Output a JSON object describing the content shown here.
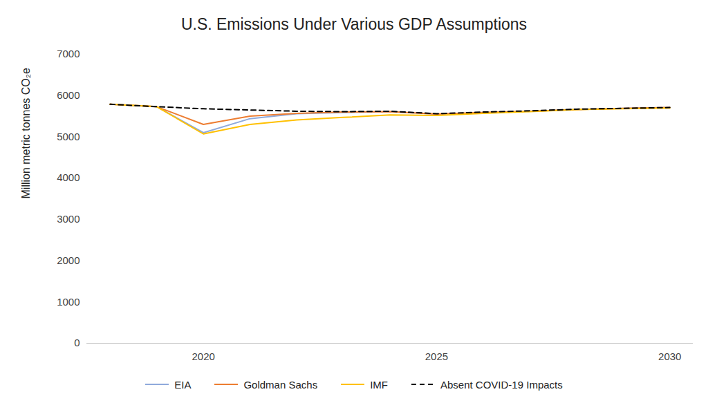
{
  "chart_data": {
    "type": "line",
    "title": "U.S. Emissions Under Various GDP Assumptions",
    "y_label": "Million metric tonnes CO₂e",
    "x": [
      2018,
      2019,
      2020,
      2021,
      2022,
      2023,
      2024,
      2025,
      2026,
      2027,
      2028,
      2029,
      2030
    ],
    "series": [
      {
        "name": "EIA",
        "color": "#8faadc",
        "line_style": "solid",
        "values": [
          5790,
          5730,
          5100,
          5440,
          5560,
          5590,
          5610,
          5550,
          5590,
          5620,
          5660,
          5690,
          5710
        ]
      },
      {
        "name": "Goldman Sachs",
        "color": "#ed7d31",
        "line_style": "solid",
        "values": [
          5790,
          5730,
          5300,
          5500,
          5570,
          5600,
          5610,
          5550,
          5590,
          5620,
          5660,
          5690,
          5710
        ]
      },
      {
        "name": "IMF",
        "color": "#ffc000",
        "line_style": "solid",
        "values": [
          5790,
          5730,
          5070,
          5300,
          5410,
          5470,
          5530,
          5520,
          5570,
          5610,
          5660,
          5680,
          5700
        ]
      },
      {
        "name": "Absent COVID-19 Impacts",
        "color": "#000000",
        "line_style": "dashed",
        "values": [
          5790,
          5730,
          5680,
          5650,
          5620,
          5610,
          5620,
          5560,
          5600,
          5630,
          5670,
          5690,
          5710
        ]
      }
    ],
    "xlim": [
      2017.5,
      2030.5
    ],
    "xticks": [
      2020,
      2025,
      2030
    ],
    "ylim": [
      0,
      7000
    ],
    "yticks": [
      0,
      1000,
      2000,
      3000,
      4000,
      5000,
      6000,
      7000
    ],
    "grid": false,
    "legend": "bottom"
  }
}
